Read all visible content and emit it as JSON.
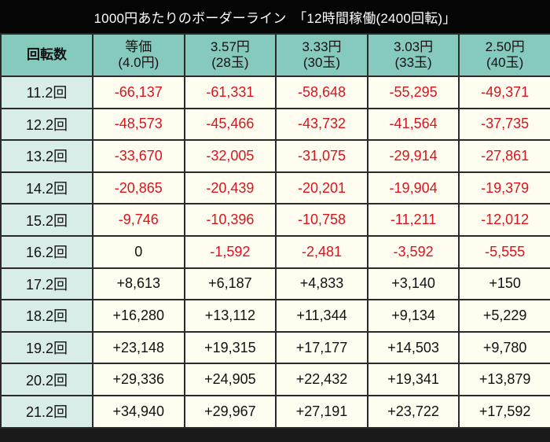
{
  "title": "1000円あたりのボーダーライン　「12時間稼働(2400回転)」",
  "colors": {
    "title_bg": "#050505",
    "header_bg": "#86c9bd",
    "first_col_bg": "#d8ece8",
    "cell_bg": "#fffdf0",
    "negative": "#d8141f",
    "positive": "#111111"
  },
  "header": {
    "first": "回転数",
    "columns": [
      {
        "line1": "等価",
        "line2": "(4.0円)"
      },
      {
        "line1": "3.57円",
        "line2": "(28玉)"
      },
      {
        "line1": "3.33円",
        "line2": "(30玉)"
      },
      {
        "line1": "3.03円",
        "line2": "(33玉)"
      },
      {
        "line1": "2.50円",
        "line2": "(40玉)"
      }
    ]
  },
  "rows": [
    {
      "spin": "11.2回",
      "values": [
        "-66,137",
        "-61,331",
        "-58,648",
        "-55,295",
        "-49,371"
      ]
    },
    {
      "spin": "12.2回",
      "values": [
        "-48,573",
        "-45,466",
        "-43,732",
        "-41,564",
        "-37,735"
      ]
    },
    {
      "spin": "13.2回",
      "values": [
        "-33,670",
        "-32,005",
        "-31,075",
        "-29,914",
        "-27,861"
      ]
    },
    {
      "spin": "14.2回",
      "values": [
        "-20,865",
        "-20,439",
        "-20,201",
        "-19,904",
        "-19,379"
      ]
    },
    {
      "spin": "15.2回",
      "values": [
        "-9,746",
        "-10,396",
        "-10,758",
        "-11,211",
        "-12,012"
      ]
    },
    {
      "spin": "16.2回",
      "values": [
        "0",
        "-1,592",
        "-2,481",
        "-3,592",
        "-5,555"
      ]
    },
    {
      "spin": "17.2回",
      "values": [
        "+8,613",
        "+6,187",
        "+4,833",
        "+3,140",
        "+150"
      ]
    },
    {
      "spin": "18.2回",
      "values": [
        "+16,280",
        "+13,112",
        "+11,344",
        "+9,134",
        "+5,229"
      ]
    },
    {
      "spin": "19.2回",
      "values": [
        "+23,148",
        "+19,315",
        "+17,177",
        "+14,503",
        "+9,780"
      ]
    },
    {
      "spin": "20.2回",
      "values": [
        "+29,336",
        "+24,905",
        "+22,432",
        "+19,341",
        "+13,879"
      ]
    },
    {
      "spin": "21.2回",
      "values": [
        "+34,940",
        "+29,967",
        "+27,191",
        "+23,722",
        "+17,592"
      ]
    }
  ]
}
